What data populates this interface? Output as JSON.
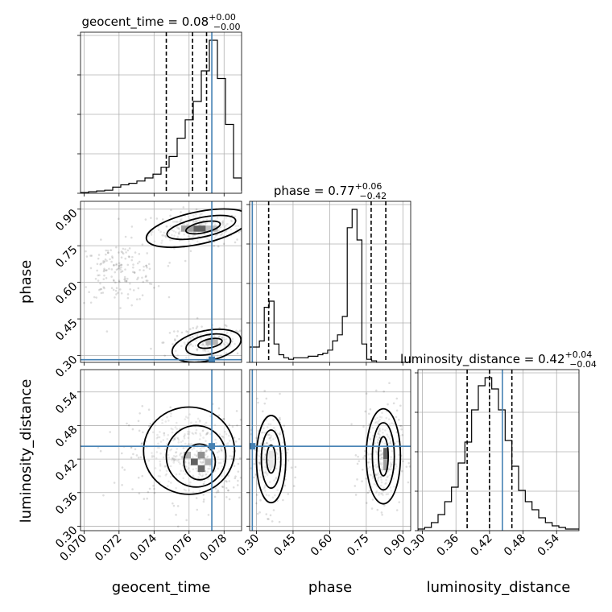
{
  "chart_data": {
    "type": "corner",
    "parameters": [
      "geocent_time",
      "phase",
      "luminosity_distance"
    ],
    "titles": [
      {
        "name": "geocent_time",
        "value": "0.08",
        "upper": "+0.00",
        "lower": "−0.00"
      },
      {
        "name": "phase",
        "value": "0.77",
        "upper": "+0.06",
        "lower": "−0.42"
      },
      {
        "name": "luminosity_distance",
        "value": "0.42",
        "upper": "+0.04",
        "lower": "−0.04"
      }
    ],
    "axis_ranges": {
      "geocent_time": [
        0.0698,
        0.079
      ],
      "phase": [
        0.272,
        0.932
      ],
      "luminosity_distance": [
        0.292,
        0.58
      ]
    },
    "tick_labels": {
      "geocent_time": [
        "0.070",
        "0.072",
        "0.074",
        "0.076",
        "0.078"
      ],
      "phase": [
        "0.30",
        "0.45",
        "0.60",
        "0.75",
        "0.90"
      ],
      "luminosity_distance": [
        "0.30",
        "0.36",
        "0.42",
        "0.48",
        "0.54"
      ]
    },
    "truths": {
      "geocent_time": 0.0773,
      "phase": 0.283,
      "luminosity_distance": 0.443
    },
    "quantile_lines": {
      "geocent_time": [
        0.0747,
        0.0762,
        0.077
      ],
      "phase": [
        0.35,
        0.77,
        0.83
      ],
      "luminosity_distance": [
        0.38,
        0.42,
        0.46
      ]
    },
    "histograms": {
      "geocent_time": {
        "edges_start": 0.0698,
        "bin_width": 0.00046,
        "counts": [
          0.5,
          1.0,
          1.5,
          2.0,
          4.0,
          5.5,
          6.5,
          8.0,
          10.0,
          12.5,
          17.0,
          24.0,
          36.0,
          48.0,
          60.0,
          80.0,
          100.0,
          75.0,
          45.0,
          10.0,
          2.0,
          0.5
        ]
      },
      "phase": {
        "edges_start": 0.272,
        "bin_width": 0.02,
        "counts": [
          10,
          10,
          14,
          36,
          40,
          12,
          5,
          3,
          2,
          3,
          3,
          3,
          4,
          4,
          5,
          6,
          8,
          14,
          18,
          30,
          88,
          100,
          80,
          12,
          2,
          1,
          0,
          0,
          0,
          0,
          0,
          0,
          0
        ]
      },
      "luminosity_distance": {
        "edges_start": 0.292,
        "bin_width": 0.012,
        "counts": [
          1,
          2,
          5,
          10,
          18,
          27,
          42,
          55,
          75,
          90,
          95,
          88,
          75,
          56,
          40,
          25,
          18,
          13,
          8,
          5,
          3,
          2,
          1,
          1
        ]
      }
    },
    "scatter_blobs": [
      {
        "panel": "phase_vs_geocent_time",
        "x": 0.0765,
        "y": 0.82,
        "sx": 0.0013,
        "sy": 0.035,
        "n": 260
      },
      {
        "panel": "phase_vs_geocent_time",
        "x": 0.077,
        "y": 0.355,
        "sx": 0.0012,
        "sy": 0.03,
        "n": 170
      },
      {
        "panel": "phase_vs_geocent_time",
        "x": 0.072,
        "y": 0.64,
        "sx": 0.0012,
        "sy": 0.06,
        "n": 170
      },
      {
        "panel": "luminosity_distance_vs_geocent_time",
        "x": 0.0762,
        "y": 0.425,
        "sx": 0.0018,
        "sy": 0.04,
        "n": 480
      },
      {
        "panel": "luminosity_distance_vs_phase",
        "x": 0.35,
        "y": 0.42,
        "sx": 0.04,
        "sy": 0.045,
        "n": 200
      },
      {
        "panel": "luminosity_distance_vs_phase",
        "x": 0.81,
        "y": 0.425,
        "sx": 0.04,
        "sy": 0.045,
        "n": 280
      }
    ],
    "contours": [
      {
        "panel": "phase_vs_geocent_time",
        "levels": [
          {
            "cx": 0.0765,
            "cy": 0.822,
            "rx": 0.003,
            "ry": 0.066
          },
          {
            "cx": 0.0767,
            "cy": 0.825,
            "rx": 0.002,
            "ry": 0.04
          },
          {
            "cx": 0.0768,
            "cy": 0.825,
            "rx": 0.001,
            "ry": 0.022
          }
        ]
      },
      {
        "panel": "phase_vs_geocent_time",
        "levels": [
          {
            "cx": 0.077,
            "cy": 0.34,
            "rx": 0.002,
            "ry": 0.062
          },
          {
            "cx": 0.0771,
            "cy": 0.345,
            "rx": 0.0013,
            "ry": 0.04
          },
          {
            "cx": 0.0772,
            "cy": 0.35,
            "rx": 0.0007,
            "ry": 0.018
          }
        ]
      },
      {
        "panel": "luminosity_distance_vs_geocent_time",
        "levels": [
          {
            "cx": 0.076,
            "cy": 0.435,
            "rx": 0.0026,
            "ry": 0.078
          },
          {
            "cx": 0.0764,
            "cy": 0.425,
            "rx": 0.0017,
            "ry": 0.055
          },
          {
            "cx": 0.0766,
            "cy": 0.415,
            "rx": 0.0009,
            "ry": 0.032
          }
        ]
      },
      {
        "panel": "luminosity_distance_vs_phase",
        "levels": [
          {
            "cx": 0.36,
            "cy": 0.42,
            "rx": 0.06,
            "ry": 0.078
          },
          {
            "cx": 0.36,
            "cy": 0.42,
            "rx": 0.04,
            "ry": 0.052
          },
          {
            "cx": 0.36,
            "cy": 0.42,
            "rx": 0.018,
            "ry": 0.025
          }
        ]
      },
      {
        "panel": "luminosity_distance_vs_phase",
        "levels": [
          {
            "cx": 0.82,
            "cy": 0.425,
            "rx": 0.07,
            "ry": 0.085
          },
          {
            "cx": 0.82,
            "cy": 0.425,
            "rx": 0.045,
            "ry": 0.06
          },
          {
            "cx": 0.82,
            "cy": 0.425,
            "rx": 0.02,
            "ry": 0.035
          }
        ]
      }
    ],
    "density_cells": [
      {
        "panel": "phase_vs_geocent_time",
        "x": 0.0766,
        "y": 0.82,
        "w": 0.0007,
        "h": 0.025,
        "level": 1.0
      },
      {
        "panel": "phase_vs_geocent_time",
        "x": 0.0759,
        "y": 0.82,
        "w": 0.0007,
        "h": 0.025,
        "level": 0.6
      },
      {
        "panel": "phase_vs_geocent_time",
        "x": 0.0773,
        "y": 0.82,
        "w": 0.0007,
        "h": 0.025,
        "level": 0.4
      },
      {
        "panel": "phase_vs_geocent_time",
        "x": 0.0773,
        "y": 0.355,
        "w": 0.0007,
        "h": 0.025,
        "level": 0.45
      },
      {
        "panel": "luminosity_distance_vs_geocent_time",
        "x": 0.0763,
        "y": 0.415,
        "w": 0.0004,
        "h": 0.012,
        "level": 1.0
      },
      {
        "panel": "luminosity_distance_vs_geocent_time",
        "x": 0.0767,
        "y": 0.403,
        "w": 0.0004,
        "h": 0.012,
        "level": 0.95
      },
      {
        "panel": "luminosity_distance_vs_geocent_time",
        "x": 0.0767,
        "y": 0.427,
        "w": 0.0004,
        "h": 0.012,
        "level": 0.7
      },
      {
        "panel": "luminosity_distance_vs_geocent_time",
        "x": 0.0759,
        "y": 0.427,
        "w": 0.0004,
        "h": 0.012,
        "level": 0.55
      },
      {
        "panel": "luminosity_distance_vs_geocent_time",
        "x": 0.0771,
        "y": 0.415,
        "w": 0.0004,
        "h": 0.012,
        "level": 0.5
      },
      {
        "panel": "luminosity_distance_vs_phase",
        "x": 0.83,
        "y": 0.43,
        "w": 0.02,
        "h": 0.02,
        "level": 1.0
      },
      {
        "panel": "luminosity_distance_vs_phase",
        "x": 0.83,
        "y": 0.41,
        "w": 0.02,
        "h": 0.02,
        "level": 0.6
      },
      {
        "panel": "luminosity_distance_vs_phase",
        "x": 0.36,
        "y": 0.42,
        "w": 0.02,
        "h": 0.03,
        "level": 0.15
      }
    ],
    "grid": true,
    "truth_color": "#4682b4",
    "hist_color": "#000000",
    "point_color": "#000000"
  }
}
